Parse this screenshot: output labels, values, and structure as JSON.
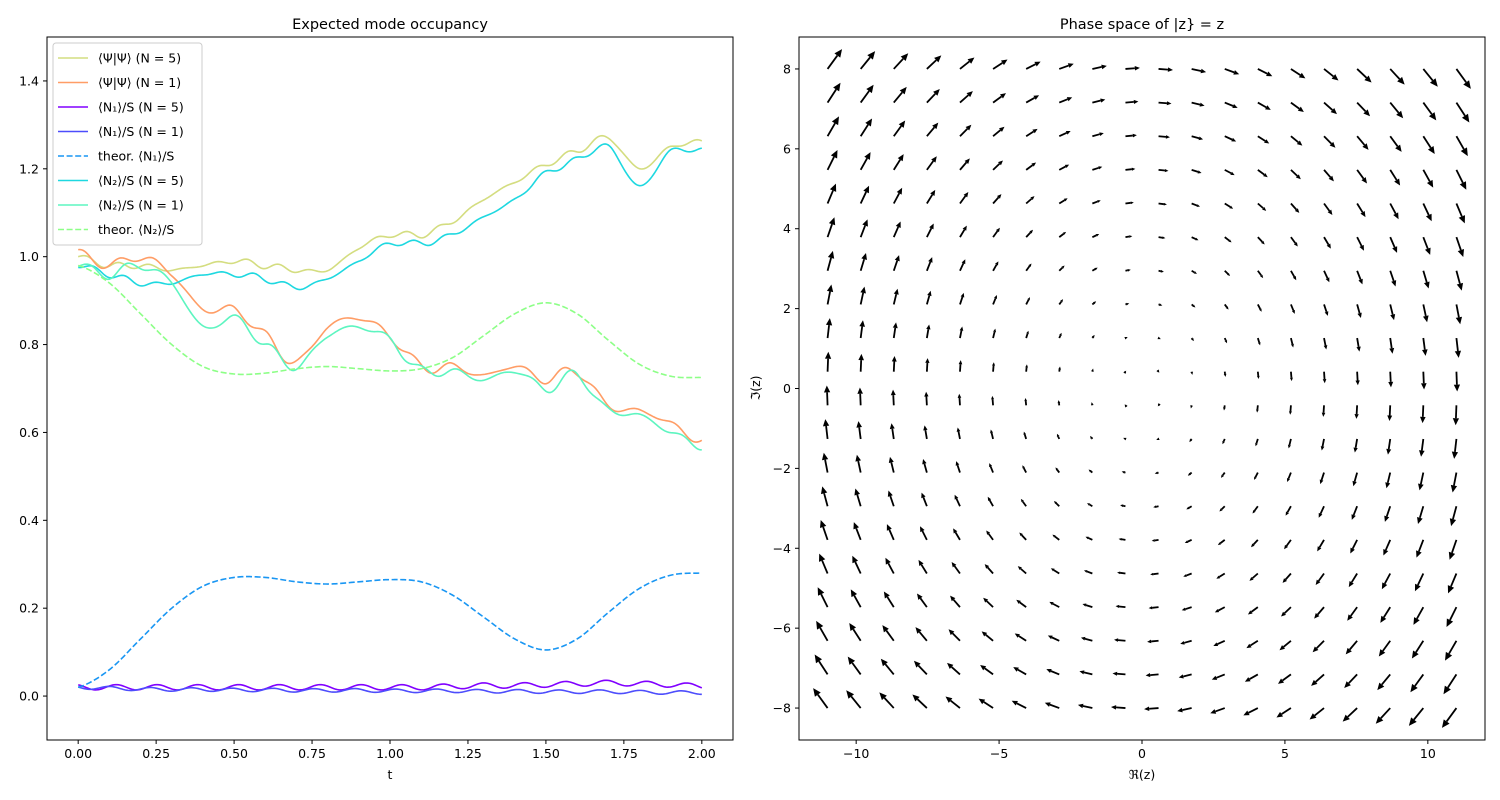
{
  "chart_data": [
    {
      "type": "line",
      "title": "Expected mode occupancy",
      "xlabel": "t",
      "ylabel": "",
      "xlim": [
        -0.1,
        2.1
      ],
      "ylim": [
        -0.1,
        1.5
      ],
      "xticks": [
        "0.00",
        "0.25",
        "0.50",
        "0.75",
        "1.00",
        "1.25",
        "1.50",
        "1.75",
        "2.00"
      ],
      "yticks": [
        "0.0",
        "0.2",
        "0.4",
        "0.6",
        "0.8",
        "1.0",
        "1.2",
        "1.4"
      ],
      "legend_position": "top-left",
      "grid": false,
      "x": [
        0.0,
        0.1,
        0.2,
        0.3,
        0.4,
        0.5,
        0.6,
        0.7,
        0.8,
        0.9,
        1.0,
        1.1,
        1.2,
        1.3,
        1.4,
        1.5,
        1.6,
        1.7,
        1.8,
        1.9,
        2.0
      ],
      "series": [
        {
          "name": "⟨Ψ|Ψ⟩ (N = 5)",
          "color": "#d4dd80",
          "dash": false,
          "values": [
            1.0,
            0.98,
            0.98,
            0.97,
            0.98,
            0.99,
            0.98,
            0.97,
            0.97,
            1.02,
            1.05,
            1.05,
            1.08,
            1.13,
            1.17,
            1.21,
            1.24,
            1.27,
            1.2,
            1.25,
            1.26
          ]
        },
        {
          "name": "⟨Ψ|Ψ⟩ (N = 1)",
          "color": "#ff9d66",
          "dash": false,
          "values": [
            1.01,
            0.98,
            1.0,
            0.96,
            0.88,
            0.88,
            0.82,
            0.76,
            0.84,
            0.86,
            0.82,
            0.75,
            0.75,
            0.73,
            0.75,
            0.72,
            0.74,
            0.66,
            0.65,
            0.62,
            0.58
          ]
        },
        {
          "name": "⟨N₁⟩/S (N = 5)",
          "color": "#8000ff",
          "dash": false,
          "values": [
            0.02,
            0.02,
            0.02,
            0.02,
            0.02,
            0.02,
            0.02,
            0.02,
            0.02,
            0.02,
            0.02,
            0.02,
            0.022,
            0.024,
            0.024,
            0.026,
            0.028,
            0.03,
            0.028,
            0.026,
            0.022
          ]
        },
        {
          "name": "⟨N₁⟩/S (N = 1)",
          "color": "#4d4dfc",
          "dash": false,
          "values": [
            0.02,
            0.018,
            0.016,
            0.015,
            0.015,
            0.014,
            0.014,
            0.013,
            0.013,
            0.013,
            0.012,
            0.012,
            0.012,
            0.011,
            0.011,
            0.01,
            0.01,
            0.01,
            0.009,
            0.008,
            0.008
          ]
        },
        {
          "name": "theor. ⟨N₁⟩/S",
          "color": "#1996f3",
          "dash": true,
          "values": [
            0.02,
            0.06,
            0.13,
            0.2,
            0.25,
            0.27,
            0.27,
            0.26,
            0.255,
            0.26,
            0.265,
            0.26,
            0.23,
            0.18,
            0.13,
            0.105,
            0.13,
            0.19,
            0.245,
            0.275,
            0.28
          ]
        },
        {
          "name": "⟨N₂⟩/S (N = 5)",
          "color": "#1ed8e0",
          "dash": false,
          "values": [
            0.98,
            0.96,
            0.94,
            0.94,
            0.96,
            0.96,
            0.95,
            0.93,
            0.95,
            0.99,
            1.03,
            1.03,
            1.05,
            1.09,
            1.13,
            1.19,
            1.22,
            1.25,
            1.16,
            1.24,
            1.24
          ]
        },
        {
          "name": "⟨N₂⟩/S (N = 1)",
          "color": "#5df5c0",
          "dash": false,
          "values": [
            0.98,
            0.96,
            0.98,
            0.94,
            0.84,
            0.86,
            0.8,
            0.75,
            0.82,
            0.84,
            0.81,
            0.74,
            0.74,
            0.72,
            0.74,
            0.7,
            0.73,
            0.65,
            0.64,
            0.6,
            0.57
          ]
        },
        {
          "name": "theor. ⟨N₂⟩/S",
          "color": "#8dff87",
          "dash": true,
          "values": [
            0.98,
            0.94,
            0.87,
            0.8,
            0.75,
            0.733,
            0.735,
            0.745,
            0.75,
            0.745,
            0.74,
            0.745,
            0.77,
            0.82,
            0.87,
            0.895,
            0.87,
            0.81,
            0.755,
            0.728,
            0.725
          ]
        }
      ]
    },
    {
      "type": "quiver",
      "title": "Phase space of |z} = z",
      "xlabel": "ℜ(z)",
      "ylabel": "ℑ(z)",
      "xlim": [
        -12.0,
        12.0
      ],
      "ylim": [
        -8.8,
        8.8
      ],
      "xticks": [
        "−10",
        "−5",
        "0",
        "5",
        "10"
      ],
      "yticks": [
        "−8",
        "−6",
        "−4",
        "−2",
        "0",
        "2",
        "4",
        "6",
        "8"
      ],
      "grid": false,
      "arrow_color": "#000000",
      "field": "circulation",
      "direction": "clockwise",
      "x_range": [
        -11,
        11
      ],
      "y_range": [
        -8,
        8
      ],
      "nx": 20,
      "ny": 20,
      "max_arrow_length": 0.86
    }
  ]
}
